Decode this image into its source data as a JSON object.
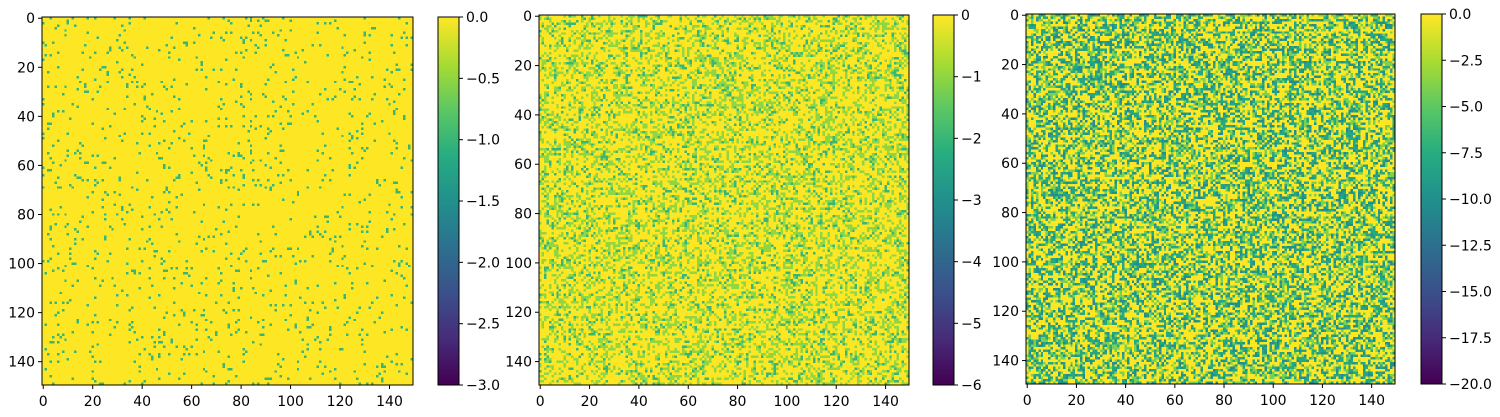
{
  "colormap": "viridis",
  "colors": {
    "background": "#ffffff",
    "axis": "#000000",
    "viridis_low": "#440154",
    "viridis_mid": "#21918c",
    "viridis_high": "#fde725"
  },
  "chart_data": [
    {
      "type": "heatmap",
      "title": "",
      "xlabel": "",
      "ylabel": "",
      "grid": false,
      "rows": 150,
      "cols": 150,
      "xlim": [
        0,
        150
      ],
      "ylim": [
        150,
        0
      ],
      "x_ticks": [
        "0",
        "20",
        "40",
        "60",
        "80",
        "100",
        "120",
        "140"
      ],
      "y_ticks": [
        "0",
        "20",
        "40",
        "60",
        "80",
        "100",
        "120",
        "140"
      ],
      "colorbar": {
        "range": [
          -3.0,
          0.0
        ],
        "ticks": [
          "0.0",
          "−0.5",
          "−1.0",
          "−1.5",
          "−2.0",
          "−2.5",
          "−3.0"
        ]
      },
      "value_distribution": {
        "levels": [
          0,
          -1
        ],
        "probabilities": [
          0.95,
          0.05
        ]
      }
    },
    {
      "type": "heatmap",
      "title": "",
      "xlabel": "",
      "ylabel": "",
      "grid": false,
      "rows": 150,
      "cols": 150,
      "xlim": [
        0,
        150
      ],
      "ylim": [
        150,
        0
      ],
      "x_ticks": [
        "0",
        "20",
        "40",
        "60",
        "80",
        "100",
        "120",
        "140"
      ],
      "y_ticks": [
        "0",
        "20",
        "40",
        "60",
        "80",
        "100",
        "120",
        "140"
      ],
      "colorbar": {
        "range": [
          -6,
          0
        ],
        "ticks": [
          "0",
          "−1",
          "−2",
          "−3",
          "−4",
          "−5",
          "−6"
        ]
      },
      "value_distribution": {
        "levels": [
          0,
          -1,
          -2
        ],
        "probabilities": [
          0.62,
          0.28,
          0.1
        ]
      }
    },
    {
      "type": "heatmap",
      "title": "",
      "xlabel": "",
      "ylabel": "",
      "grid": false,
      "rows": 150,
      "cols": 150,
      "xlim": [
        0,
        150
      ],
      "ylim": [
        150,
        0
      ],
      "x_ticks": [
        "0",
        "20",
        "40",
        "60",
        "80",
        "100",
        "120",
        "140"
      ],
      "y_ticks": [
        "0",
        "20",
        "40",
        "60",
        "80",
        "100",
        "120",
        "140"
      ],
      "colorbar": {
        "range": [
          -20.0,
          0.0
        ],
        "ticks": [
          "0.0",
          "−2.5",
          "−5.0",
          "−7.5",
          "−10.0",
          "−12.5",
          "−15.0",
          "−17.5",
          "−20.0"
        ]
      },
      "value_distribution": {
        "levels": [
          0,
          -4,
          -8,
          -10
        ],
        "probabilities": [
          0.48,
          0.16,
          0.22,
          0.14
        ]
      }
    }
  ]
}
